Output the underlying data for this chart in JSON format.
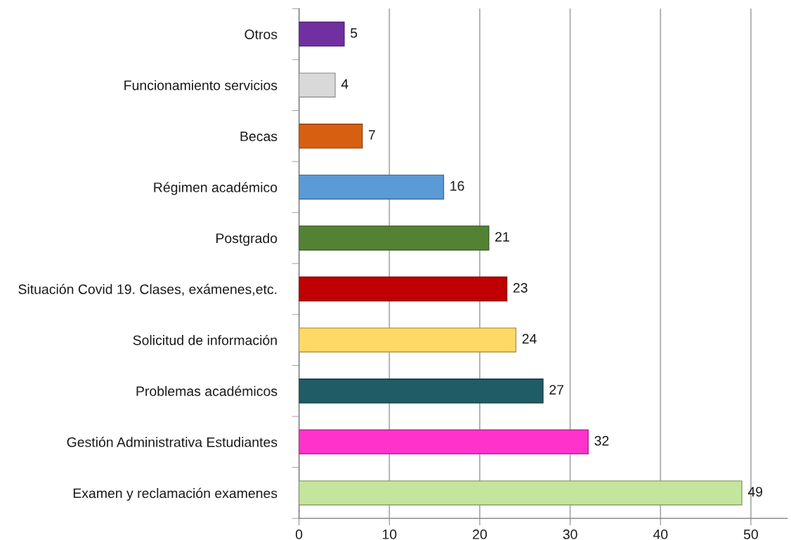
{
  "chart_data": {
    "type": "bar",
    "orientation": "horizontal",
    "categories": [
      "Otros",
      "Funcionamiento servicios",
      "Becas",
      "Régimen académico",
      "Postgrado",
      "Situación Covid 19. Clases, exámenes,etc.",
      "Solicitud de información",
      "Problemas académicos",
      "Gestión Administrativa Estudiantes",
      "Examen y reclamación examenes"
    ],
    "values": [
      5,
      4,
      7,
      16,
      21,
      23,
      24,
      27,
      32,
      49
    ],
    "colors": [
      "#7030a0",
      "#d9d9d9",
      "#d65f12",
      "#5b9bd5",
      "#548235",
      "#c00000",
      "#ffd966",
      "#1f5c66",
      "#ff33cc",
      "#c4e59c"
    ],
    "xlim": [
      0,
      54
    ],
    "xticks": [
      0,
      10,
      20,
      30,
      40,
      50
    ],
    "grid": "x",
    "data_labels": true
  }
}
